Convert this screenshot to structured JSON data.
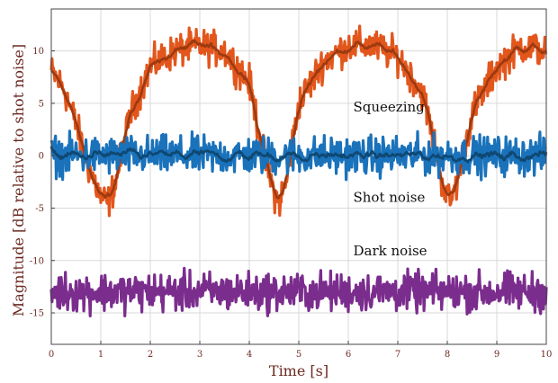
{
  "chart_data": {
    "type": "line",
    "xlabel": "Time [s]",
    "ylabel": "Magnitude  [dB relative to shot noise]",
    "xlim": [
      0,
      10
    ],
    "ylim": [
      -18,
      14
    ],
    "xticks": [
      "0",
      "1",
      "2",
      "3",
      "4",
      "5",
      "6",
      "7",
      "8",
      "9",
      "10"
    ],
    "yticks": [
      "10",
      "5",
      "0",
      "-5",
      "-10",
      "-15"
    ],
    "ytick_values": [
      10,
      5,
      0,
      -5,
      -10,
      -15
    ],
    "grid": true,
    "annotations": [
      {
        "text": "Squeezing",
        "x": 6.1,
        "y": 4.2
      },
      {
        "text": "Shot noise",
        "x": 6.1,
        "y": -4.4
      },
      {
        "text": "Dark noise",
        "x": 6.1,
        "y": -9.5
      }
    ],
    "series": [
      {
        "key": "squeezing",
        "color": "#e2561c",
        "smooth_color": "#9c3a10",
        "x": [
          0,
          0.25,
          0.5,
          0.75,
          1.0,
          1.15,
          1.3,
          1.6,
          2.0,
          2.5,
          3.0,
          3.5,
          4.0,
          4.3,
          4.5,
          4.6,
          4.75,
          5.0,
          5.5,
          6.0,
          6.5,
          7.0,
          7.5,
          7.7,
          7.9,
          8.05,
          8.2,
          8.5,
          9.0,
          9.5,
          10.0
        ],
        "y": [
          8,
          6.5,
          3,
          -1,
          -4,
          -4.5,
          -2.5,
          4,
          8.5,
          10,
          10.5,
          10,
          7,
          0,
          -3.5,
          -4.5,
          -2.5,
          5,
          9,
          10.5,
          10.5,
          9.5,
          6,
          2,
          -2.5,
          -4.5,
          -2.5,
          4,
          8.5,
          10.5,
          10
        ],
        "noise": 1.4
      },
      {
        "key": "shot-noise",
        "color": "#1a72bb",
        "smooth_color": "#0f4872",
        "x": [
          0,
          10
        ],
        "y": [
          0,
          0
        ],
        "noise": 1.6
      },
      {
        "key": "dark-noise",
        "color": "#7b2d8e",
        "smooth_color": "#7b2d8e",
        "x": [
          0,
          10
        ],
        "y": [
          -13,
          -13
        ],
        "noise": 1.6
      }
    ]
  }
}
